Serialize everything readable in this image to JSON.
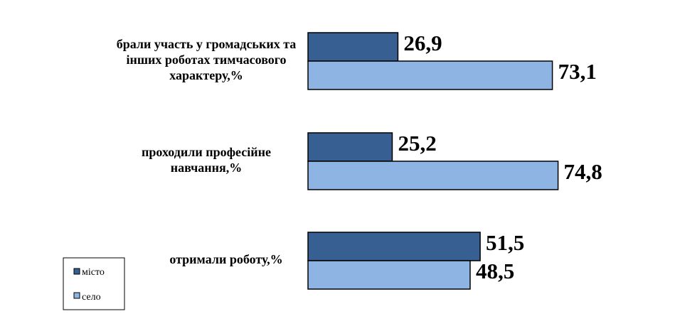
{
  "chart_data": {
    "type": "bar",
    "orientation": "horizontal",
    "categories": [
      "брали участь у громадських та інших роботах тимчасового характеру,%",
      "проходили професійне навчання,%",
      "отримали роботу,%"
    ],
    "category_lines": [
      [
        "брали участь у громадських та",
        "інших роботах тимчасового",
        "характеру,%"
      ],
      [
        "проходили професійне",
        "навчання,%"
      ],
      [
        "отримали роботу,%"
      ]
    ],
    "series": [
      {
        "name": "місто",
        "values": [
          26.9,
          25.2,
          51.5
        ],
        "labels": [
          "26,9",
          "25,2",
          "51,5"
        ],
        "color": "#375F92"
      },
      {
        "name": "село",
        "values": [
          73.1,
          74.8,
          48.5
        ],
        "labels": [
          "73,1",
          "74,8",
          "48,5"
        ],
        "color": "#8EB4E3"
      }
    ],
    "xlim": [
      0,
      100
    ],
    "grid": false,
    "legend_position": "bottom-left",
    "title": "",
    "xlabel": "",
    "ylabel": ""
  }
}
